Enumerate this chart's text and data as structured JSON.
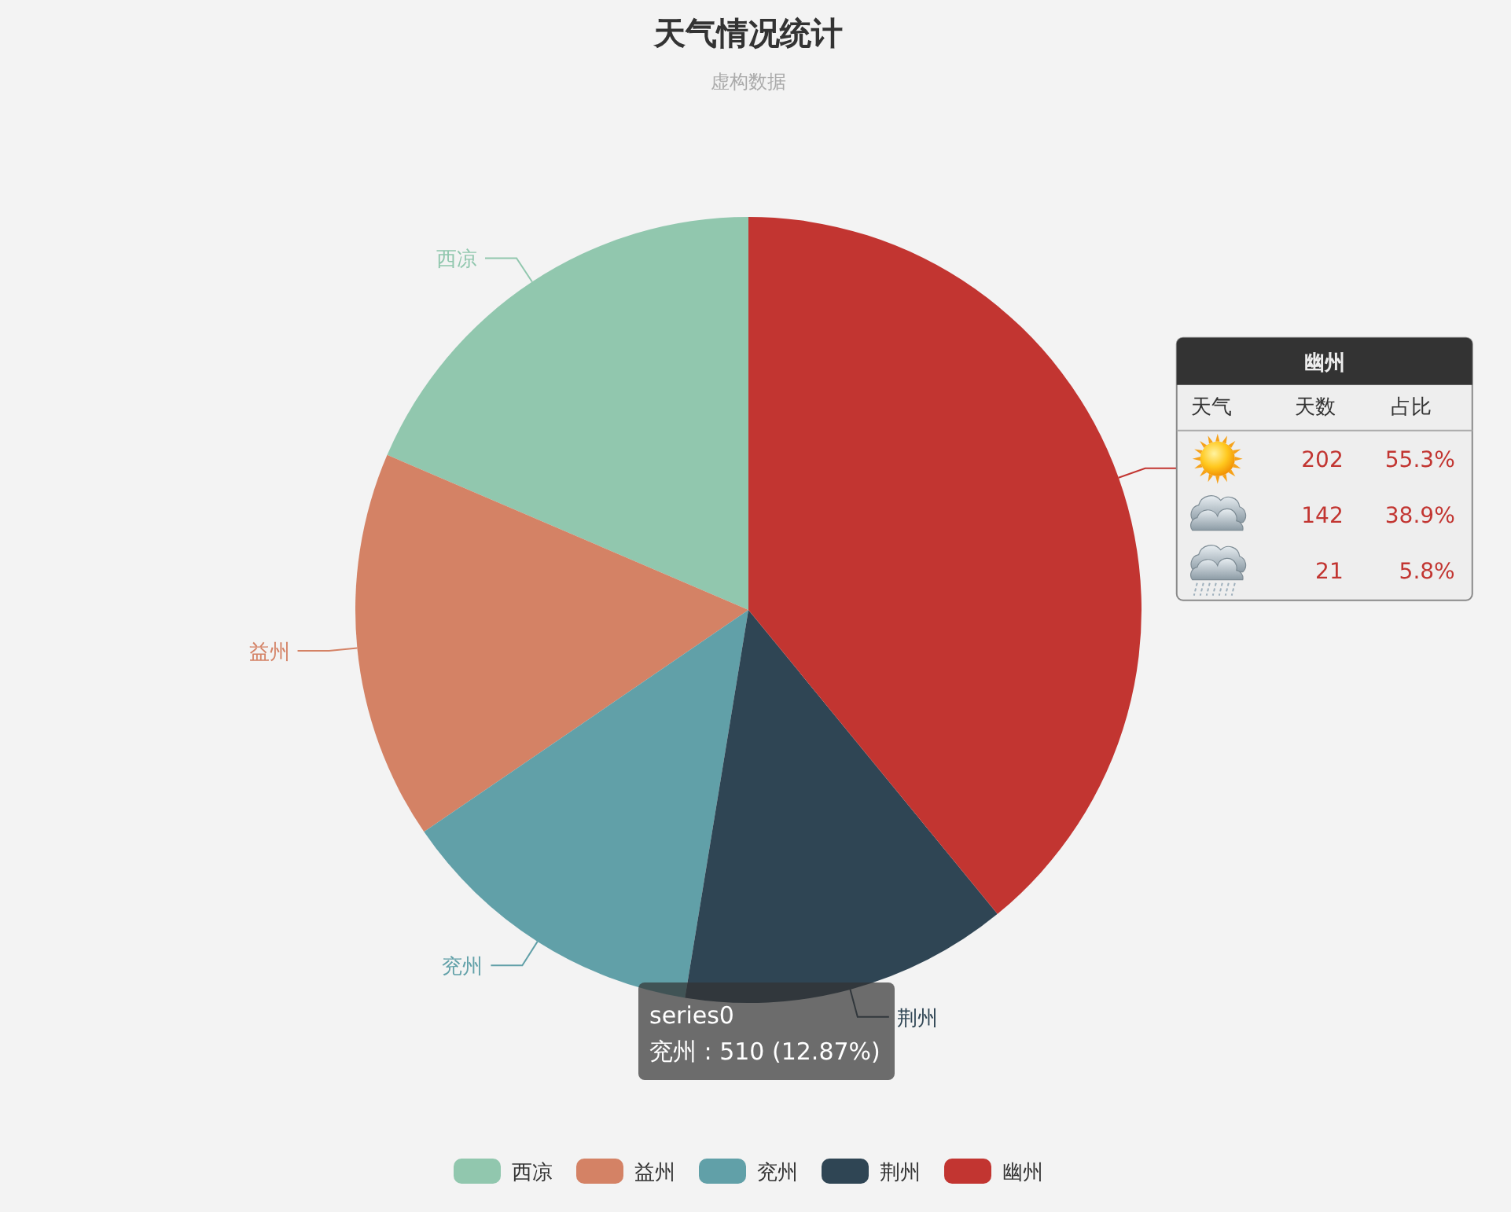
{
  "chart_data": {
    "type": "pie",
    "title": "天气情况统计",
    "subtitle": "虚构数据",
    "categories": [
      "西凉",
      "益州",
      "兖州",
      "荆州",
      "幽州"
    ],
    "values": [
      18.55,
      16.0,
      12.87,
      13.5,
      39.08
    ],
    "colors": [
      "#91c7ae",
      "#d48265",
      "#61a0a8",
      "#2f4554",
      "#c23531"
    ],
    "legend": "bottom",
    "annotations": [
      "天气",
      "天数",
      "占比",
      "202",
      "55.3%",
      "142",
      "38.9%",
      "21",
      "5.8%",
      "series0",
      "兖州 : 510 (12.87%)"
    ]
  }
}
